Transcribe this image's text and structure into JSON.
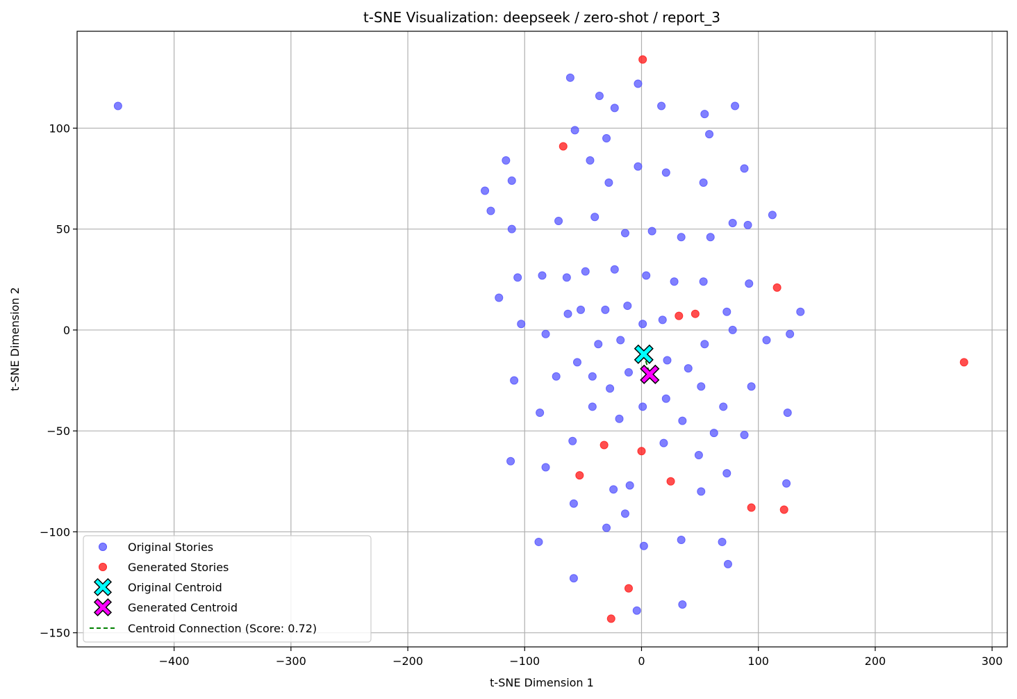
{
  "chart_data": {
    "type": "scatter",
    "title": "t-SNE Visualization: deepseek / zero-shot / report_3",
    "xlabel": "t-SNE Dimension 1",
    "ylabel": "t-SNE Dimension 2",
    "xlim": [
      -483,
      313
    ],
    "ylim": [
      -157,
      148
    ],
    "xticks": [
      -400,
      -300,
      -200,
      -100,
      0,
      100,
      200,
      300
    ],
    "yticks": [
      -150,
      -100,
      -50,
      0,
      50,
      100
    ],
    "xtick_labels": [
      "−400",
      "−300",
      "−200",
      "−100",
      "0",
      "100",
      "200",
      "300"
    ],
    "ytick_labels": [
      "−150",
      "−100",
      "−50",
      "0",
      "50",
      "100"
    ],
    "grid": true,
    "legend_position": "lower-left",
    "series": [
      {
        "name": "Original Stories",
        "color": "#5555ff",
        "marker": "circle",
        "points": [
          [
            -448,
            111
          ],
          [
            -61,
            125
          ],
          [
            -36,
            116
          ],
          [
            -3,
            122
          ],
          [
            -23,
            110
          ],
          [
            17,
            111
          ],
          [
            54,
            107
          ],
          [
            80,
            111
          ],
          [
            -57,
            99
          ],
          [
            58,
            97
          ],
          [
            -30,
            95
          ],
          [
            -116,
            84
          ],
          [
            -44,
            84
          ],
          [
            -3,
            81
          ],
          [
            21,
            78
          ],
          [
            88,
            80
          ],
          [
            -111,
            74
          ],
          [
            -28,
            73
          ],
          [
            53,
            73
          ],
          [
            -134,
            69
          ],
          [
            -129,
            59
          ],
          [
            -71,
            54
          ],
          [
            -40,
            56
          ],
          [
            112,
            57
          ],
          [
            -111,
            50
          ],
          [
            -14,
            48
          ],
          [
            9,
            49
          ],
          [
            78,
            53
          ],
          [
            91,
            52
          ],
          [
            34,
            46
          ],
          [
            59,
            46
          ],
          [
            -106,
            26
          ],
          [
            -85,
            27
          ],
          [
            -64,
            26
          ],
          [
            -48,
            29
          ],
          [
            -23,
            30
          ],
          [
            4,
            27
          ],
          [
            28,
            24
          ],
          [
            53,
            24
          ],
          [
            92,
            23
          ],
          [
            -122,
            16
          ],
          [
            -52,
            10
          ],
          [
            -31,
            10
          ],
          [
            -12,
            12
          ],
          [
            73,
            9
          ],
          [
            136,
            9
          ],
          [
            -103,
            3
          ],
          [
            -63,
            8
          ],
          [
            1,
            3
          ],
          [
            18,
            5
          ],
          [
            -82,
            -2
          ],
          [
            -37,
            -7
          ],
          [
            -18,
            -5
          ],
          [
            54,
            -7
          ],
          [
            78,
            0
          ],
          [
            107,
            -5
          ],
          [
            127,
            -2
          ],
          [
            -55,
            -16
          ],
          [
            22,
            -15
          ],
          [
            40,
            -19
          ],
          [
            -109,
            -25
          ],
          [
            -73,
            -23
          ],
          [
            -42,
            -23
          ],
          [
            -11,
            -21
          ],
          [
            -27,
            -29
          ],
          [
            51,
            -28
          ],
          [
            94,
            -28
          ],
          [
            -42,
            -38
          ],
          [
            1,
            -38
          ],
          [
            21,
            -34
          ],
          [
            70,
            -38
          ],
          [
            -87,
            -41
          ],
          [
            -19,
            -44
          ],
          [
            35,
            -45
          ],
          [
            125,
            -41
          ],
          [
            -59,
            -55
          ],
          [
            19,
            -56
          ],
          [
            62,
            -51
          ],
          [
            88,
            -52
          ],
          [
            -112,
            -65
          ],
          [
            -82,
            -68
          ],
          [
            49,
            -62
          ],
          [
            73,
            -71
          ],
          [
            -24,
            -79
          ],
          [
            -10,
            -77
          ],
          [
            51,
            -80
          ],
          [
            124,
            -76
          ],
          [
            -58,
            -86
          ],
          [
            -14,
            -91
          ],
          [
            -30,
            -98
          ],
          [
            -88,
            -105
          ],
          [
            2,
            -107
          ],
          [
            34,
            -104
          ],
          [
            69,
            -105
          ],
          [
            74,
            -116
          ],
          [
            -58,
            -123
          ],
          [
            -4,
            -139
          ],
          [
            35,
            -136
          ]
        ]
      },
      {
        "name": "Generated Stories",
        "color": "#ff2222",
        "marker": "circle",
        "points": [
          [
            1,
            134
          ],
          [
            -67,
            91
          ],
          [
            116,
            21
          ],
          [
            32,
            7
          ],
          [
            46,
            8
          ],
          [
            276,
            -16
          ],
          [
            -32,
            -57
          ],
          [
            0,
            -60
          ],
          [
            -53,
            -72
          ],
          [
            25,
            -75
          ],
          [
            94,
            -88
          ],
          [
            122,
            -89
          ],
          [
            -11,
            -128
          ],
          [
            -26,
            -143
          ]
        ]
      },
      {
        "name": "Original Centroid",
        "color": "#00ffff",
        "marker": "X",
        "points": [
          [
            2,
            -12
          ]
        ]
      },
      {
        "name": "Generated Centroid",
        "color": "#ff00ff",
        "marker": "X",
        "points": [
          [
            7,
            -22
          ]
        ]
      },
      {
        "name": "Centroid Connection (Score: 0.72)",
        "color": "#008000",
        "marker": "dashed-line",
        "points": [
          [
            2,
            -12
          ],
          [
            7,
            -22
          ]
        ]
      }
    ]
  }
}
